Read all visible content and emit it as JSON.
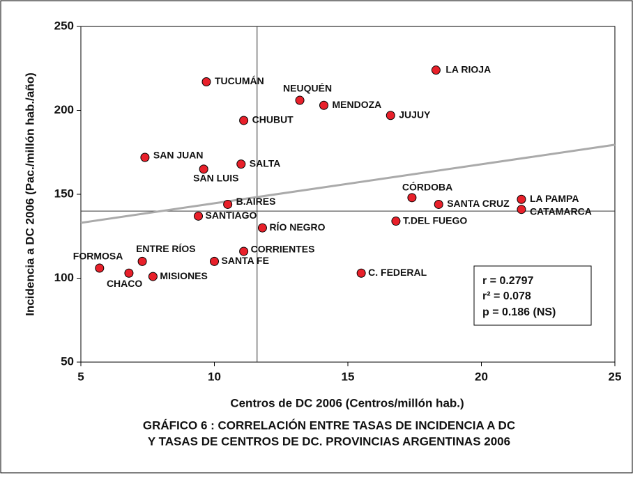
{
  "chart_data": {
    "type": "scatter",
    "caption": [
      "GRÁFICO 6 : CORRELACIÓN ENTRE TASAS DE INCIDENCIA A DC",
      "Y TASAS DE CENTROS DE DC.  PROVINCIAS ARGENTINAS 2006"
    ],
    "x_label": "Centros de DC 2006 (Centros/millón hab.)",
    "y_label": "Incidencia a DC 2006 (Pac./millón hab./año)",
    "categories": [
      "LA RIOJA",
      "TUCUMÁN",
      "NEUQUÉN",
      "MENDOZA",
      "JUJUY",
      "CHUBUT",
      "SAN JUAN",
      "SALTA",
      "SAN LUIS",
      "CÓRDOBA",
      "LA PAMPA",
      "SANTA CRUZ",
      "B.AIRES",
      "CATAMARCA",
      "SANTIAGO",
      "T.DEL FUEGO",
      "RÍO NEGRO",
      "CORRIENTES",
      "ENTRE RÍOS",
      "SANTA FE",
      "FORMOSA",
      "CHACO",
      "C. FEDERAL",
      "MISIONES"
    ],
    "x": [
      18.3,
      9.7,
      13.2,
      14.1,
      16.6,
      11.1,
      7.4,
      11.0,
      9.6,
      17.4,
      21.5,
      18.4,
      10.5,
      21.5,
      9.4,
      16.8,
      11.8,
      11.1,
      7.3,
      10.0,
      5.7,
      6.8,
      15.5,
      7.7
    ],
    "values": [
      224,
      217,
      206,
      203,
      197,
      194,
      172,
      168,
      165,
      148,
      147,
      144,
      144,
      141,
      137,
      134,
      130,
      116,
      110,
      110,
      106,
      103,
      103,
      101
    ],
    "color": "#e8202a",
    "xlim": [
      5,
      25
    ],
    "xticks": [
      5,
      10,
      15,
      20,
      25
    ],
    "ylim": [
      50,
      250
    ],
    "yticks": [
      50,
      100,
      150,
      200,
      250
    ],
    "mean_x": 11.6,
    "mean_y": 140,
    "trendline": {
      "x": [
        5,
        25
      ],
      "y": [
        133,
        179.5
      ],
      "color": "#aaaaaa"
    },
    "stats": [
      "r = 0.2797",
      "r² = 0.078",
      "p = 0.186 (NS)"
    ]
  }
}
